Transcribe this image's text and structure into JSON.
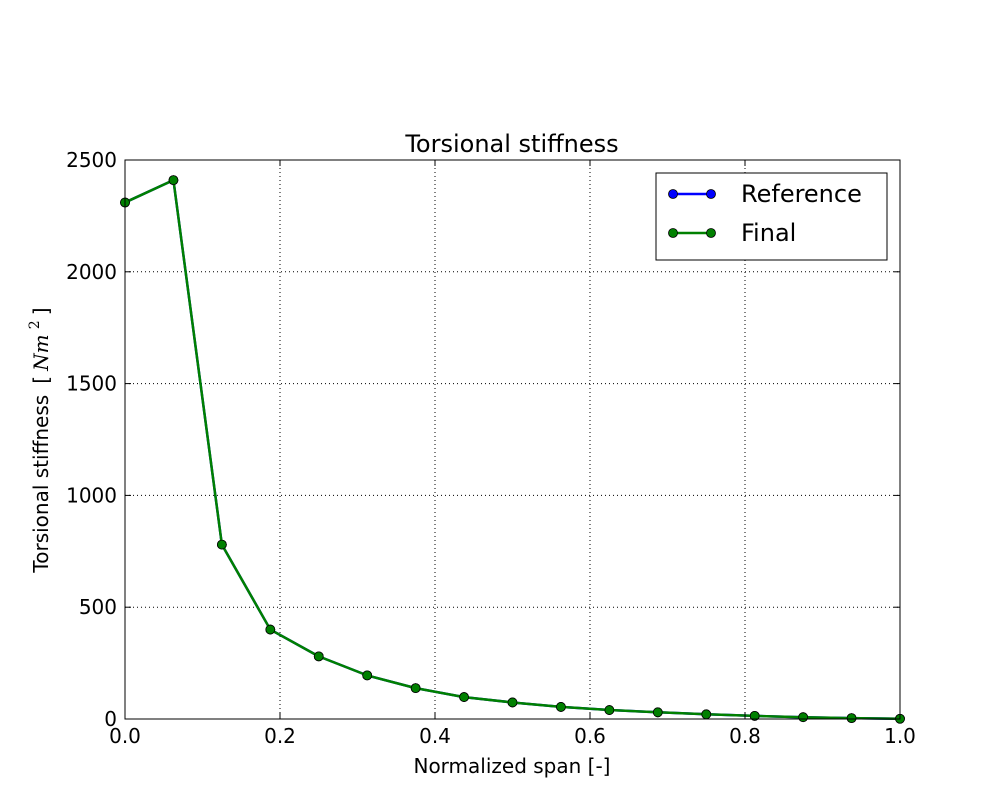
{
  "chart_data": {
    "type": "line",
    "title": "Torsional stiffness",
    "xlabel": "Normalized span [-]",
    "ylabel": "Torsional stiffness",
    "ylabel_unit_open": "[",
    "ylabel_unit_base": "Nm",
    "ylabel_unit_exp": "2",
    "ylabel_unit_close": "]",
    "xlim": [
      0.0,
      1.0
    ],
    "ylim": [
      0,
      2500
    ],
    "xticks": [
      "0.0",
      "0.2",
      "0.4",
      "0.6",
      "0.8",
      "1.0"
    ],
    "yticks": [
      "0",
      "500",
      "1000",
      "1500",
      "2000",
      "2500"
    ],
    "grid": true,
    "legend_position": "upper-right",
    "series": [
      {
        "name": "Reference",
        "color": "#0000ff",
        "x": [
          0.0,
          0.0625,
          0.125,
          0.1875,
          0.25,
          0.3125,
          0.375,
          0.4375,
          0.5,
          0.5625,
          0.625,
          0.6875,
          0.75,
          0.8125,
          0.875,
          0.9375,
          1.0
        ],
        "y": [
          2310,
          2410,
          780,
          400,
          280,
          195,
          138,
          98,
          74,
          54,
          40,
          30,
          21,
          14,
          8,
          4,
          1
        ]
      },
      {
        "name": "Final",
        "color": "#008000",
        "x": [
          0.0,
          0.0625,
          0.125,
          0.1875,
          0.25,
          0.3125,
          0.375,
          0.4375,
          0.5,
          0.5625,
          0.625,
          0.6875,
          0.75,
          0.8125,
          0.875,
          0.9375,
          1.0
        ],
        "y": [
          2310,
          2410,
          780,
          400,
          280,
          195,
          138,
          98,
          74,
          54,
          40,
          30,
          21,
          14,
          8,
          4,
          1
        ]
      }
    ]
  }
}
